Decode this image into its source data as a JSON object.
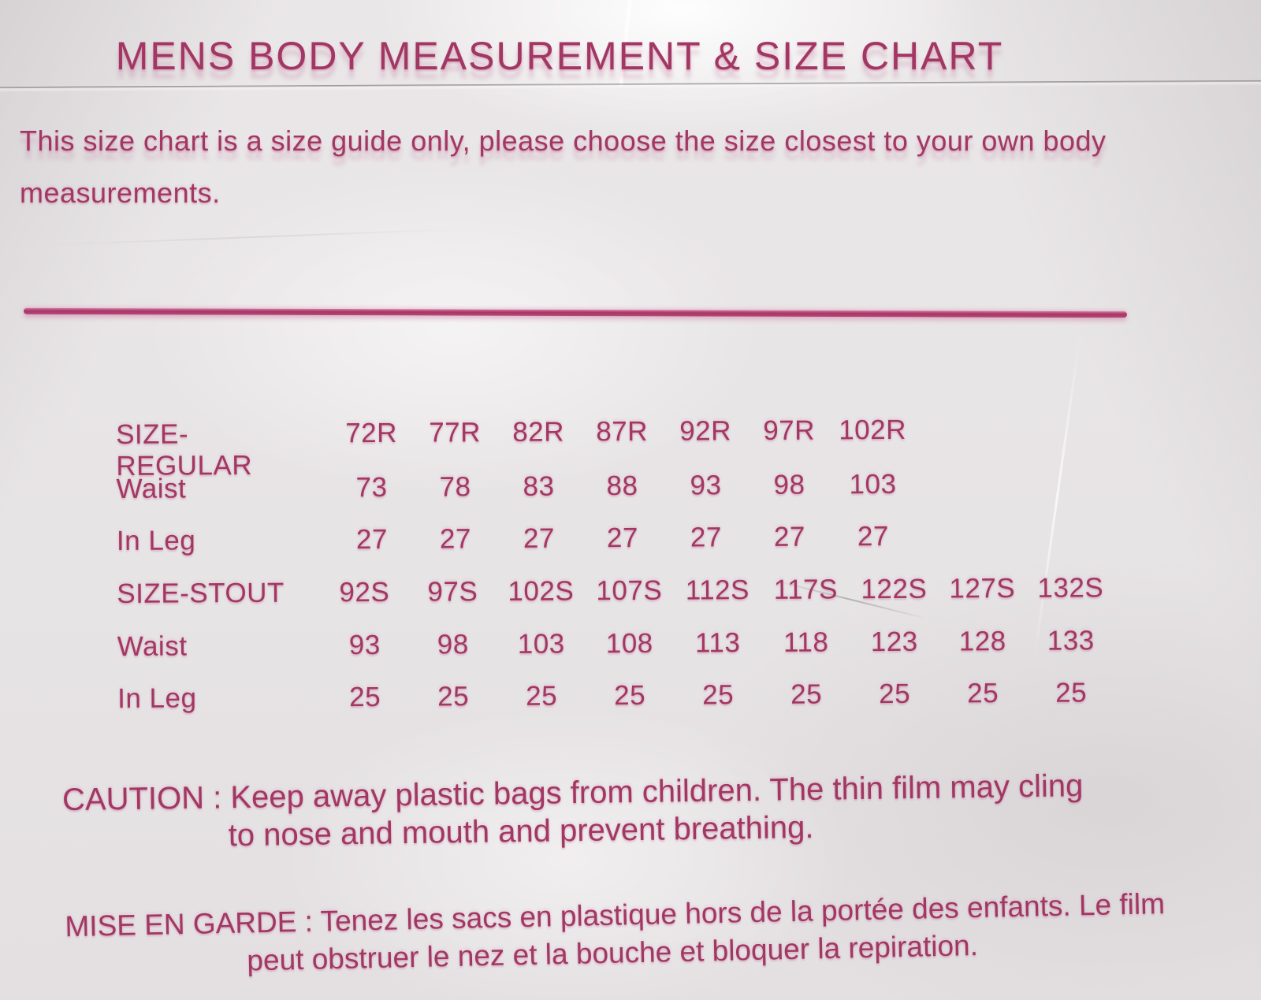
{
  "title": "MENS BODY MEASUREMENT & SIZE CHART",
  "intro": {
    "line1": "This size chart is a size guide only, please choose the size closest to your own body",
    "line2": "measurements."
  },
  "size_table": {
    "regular": {
      "size_row_label": "SIZE-REGULAR",
      "sizes": [
        "72R",
        "77R",
        "82R",
        "87R",
        "92R",
        "97R",
        "102R"
      ],
      "waist_row_label": "Waist",
      "waist": [
        "73",
        "78",
        "83",
        "88",
        "93",
        "98",
        "103"
      ],
      "inleg_row_label": "In Leg",
      "inleg": [
        "27",
        "27",
        "27",
        "27",
        "27",
        "27",
        "27"
      ]
    },
    "stout": {
      "size_row_label": "SIZE-STOUT",
      "sizes": [
        "92S",
        "97S",
        "102S",
        "107S",
        "112S",
        "117S",
        "122S",
        "127S",
        "132S"
      ],
      "waist_row_label": "Waist",
      "waist": [
        "93",
        "98",
        "103",
        "108",
        "113",
        "118",
        "123",
        "128",
        "133"
      ],
      "inleg_row_label": "In Leg",
      "inleg": [
        "25",
        "25",
        "25",
        "25",
        "25",
        "25",
        "25",
        "25",
        "25"
      ]
    }
  },
  "caution": {
    "line1": "CAUTION : Keep away plastic bags from children. The thin film may cling",
    "line2": "to nose and mouth and prevent breathing."
  },
  "mise_en_garde": {
    "line1": "MISE EN GARDE : Tenez les sacs en plastique hors de la portée des enfants. Le film",
    "line2": "peut obstruer le nez et la bouche et bloquer la repiration."
  },
  "colors": {
    "ink": "#a23763",
    "divider": "#a63663",
    "background": "#e8e5e6"
  }
}
